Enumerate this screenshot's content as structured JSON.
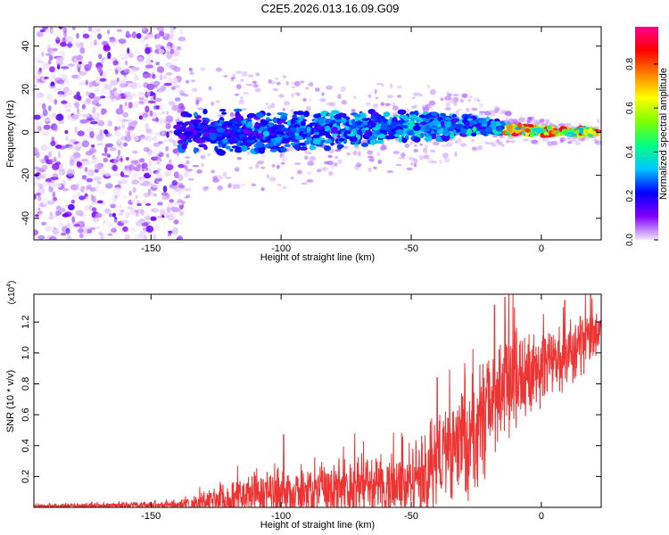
{
  "title": "C2E5.2026.013.16.09.G09",
  "chart_data": [
    {
      "type": "heatmap",
      "name": "spectrogram",
      "xlabel": "Height of straight line (km)",
      "ylabel": "Frequency (Hz)",
      "xlim": [
        -195,
        23
      ],
      "ylim": [
        -50,
        49
      ],
      "xticks": [
        -150,
        -100,
        -50,
        0
      ],
      "xtick_labels": [
        "-150",
        "-100",
        "-50",
        "0"
      ],
      "yticks": [
        -40,
        -20,
        0,
        20,
        40
      ],
      "ytick_labels": [
        "-40",
        "-20",
        "0",
        "20",
        "40"
      ],
      "band": [
        {
          "x": -140,
          "center": 0,
          "halfwidth": 12
        },
        {
          "x": -120,
          "center": 0,
          "halfwidth": 11
        },
        {
          "x": -100,
          "center": 0,
          "halfwidth": 10
        },
        {
          "x": -80,
          "center": 1,
          "halfwidth": 9
        },
        {
          "x": -60,
          "center": 2,
          "halfwidth": 8
        },
        {
          "x": -40,
          "center": 3,
          "halfwidth": 7
        },
        {
          "x": -25,
          "center": 3,
          "halfwidth": 5
        },
        {
          "x": -10,
          "center": 1,
          "halfwidth": 2.5
        },
        {
          "x": 10,
          "center": 0,
          "halfwidth": 2
        },
        {
          "x": 22,
          "center": 0,
          "halfwidth": 2
        }
      ],
      "noise_region_x": [
        -195,
        -138
      ],
      "colorbar": {
        "label": "Normalized spectral amplitude",
        "range": [
          0,
          0.97
        ],
        "ticks": [
          0.0,
          0.2,
          0.4,
          0.6,
          0.8
        ],
        "tick_labels": [
          "0.0",
          "0.2",
          "0.4",
          "0.6",
          "0.8"
        ],
        "colors": [
          "#f2e6ff",
          "#8000ff",
          "#0000ff",
          "#00c8ff",
          "#00ff80",
          "#80ff00",
          "#ffff00",
          "#ff8000",
          "#ff0000",
          "#ff0090"
        ]
      }
    },
    {
      "type": "line",
      "name": "snr",
      "xlabel": "Height of straight line (km)",
      "ylabel": "SNR (10 * v/v)",
      "multiplier": "(x10",
      "multiplier_exp": "4",
      "multiplier_close": ")",
      "xlim": [
        -195,
        23
      ],
      "ylim": [
        0,
        1.38
      ],
      "xticks": [
        -150,
        -100,
        -50,
        0
      ],
      "xtick_labels": [
        "-150",
        "-100",
        "-50",
        "0"
      ],
      "yticks": [
        0.2,
        0.4,
        0.6,
        0.8,
        1.0,
        1.2
      ],
      "ytick_labels": [
        "0.2",
        "0.4",
        "0.6",
        "0.8",
        "1.0",
        "1.2"
      ],
      "color": "#ee3333",
      "envelope": [
        {
          "x": -195,
          "base": 0.01,
          "amp": 0.015
        },
        {
          "x": -140,
          "base": 0.015,
          "amp": 0.03
        },
        {
          "x": -130,
          "base": 0.03,
          "amp": 0.08
        },
        {
          "x": -120,
          "base": 0.06,
          "amp": 0.14
        },
        {
          "x": -100,
          "base": 0.09,
          "amp": 0.2
        },
        {
          "x": -80,
          "base": 0.1,
          "amp": 0.22
        },
        {
          "x": -60,
          "base": 0.13,
          "amp": 0.25
        },
        {
          "x": -45,
          "base": 0.2,
          "amp": 0.3
        },
        {
          "x": -38,
          "base": 0.35,
          "amp": 0.4
        },
        {
          "x": -25,
          "base": 0.45,
          "amp": 0.45
        },
        {
          "x": -18,
          "base": 0.75,
          "amp": 0.45
        },
        {
          "x": 0,
          "base": 0.9,
          "amp": 0.3
        },
        {
          "x": 15,
          "base": 1.05,
          "amp": 0.25
        },
        {
          "x": 23,
          "base": 1.15,
          "amp": 0.15
        }
      ],
      "peaks": [
        {
          "x": -99,
          "y": 0.47
        },
        {
          "x": -40,
          "y": 0.84
        },
        {
          "x": -18,
          "y": 1.31
        },
        {
          "x": -14,
          "y": 1.36
        },
        {
          "x": 9,
          "y": 1.34
        },
        {
          "x": 19,
          "y": 1.38
        }
      ]
    }
  ]
}
